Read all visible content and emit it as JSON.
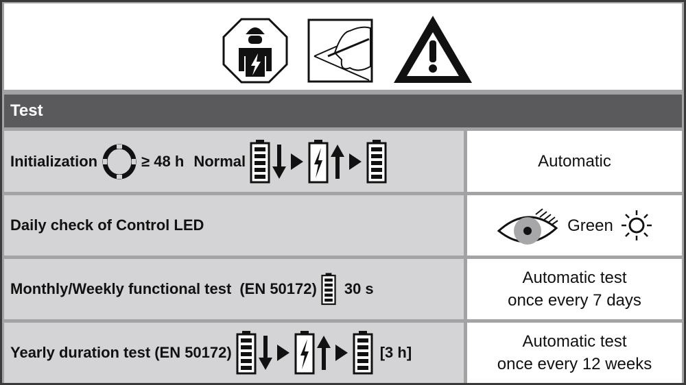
{
  "header_icons": [
    "qualified-electrician-icon",
    "read-instructions-icon",
    "warning-icon"
  ],
  "section": {
    "title": "Test"
  },
  "rows": [
    {
      "label": "Initialization",
      "duration": "≥ 48 h",
      "mode": "Normal",
      "icons": [
        "mains-ring-icon",
        "battery-full-icon",
        "arrow-down-icon",
        "play-triangle-icon",
        "battery-charging-icon",
        "arrow-up-icon",
        "play-triangle-icon",
        "battery-full-icon"
      ],
      "result": [
        "Automatic"
      ]
    },
    {
      "label": "Daily check of Control LED",
      "icons": [
        "eye-icon",
        "led-on-icon"
      ],
      "result": [
        "Green"
      ]
    },
    {
      "label": "Monthly/Weekly functional test",
      "standard": "(EN 50172)",
      "duration": "30 s",
      "icons": [
        "battery-full-icon"
      ],
      "result": [
        "Automatic test",
        "once every 7 days"
      ]
    },
    {
      "label": "Yearly duration test",
      "standard": "(EN 50172)",
      "duration": "[3 h]",
      "icons": [
        "battery-full-icon",
        "arrow-down-icon",
        "play-triangle-icon",
        "battery-charging-icon",
        "arrow-up-icon",
        "play-triangle-icon",
        "battery-full-icon"
      ],
      "result": [
        "Automatic test",
        "once every 12 weeks"
      ]
    }
  ]
}
